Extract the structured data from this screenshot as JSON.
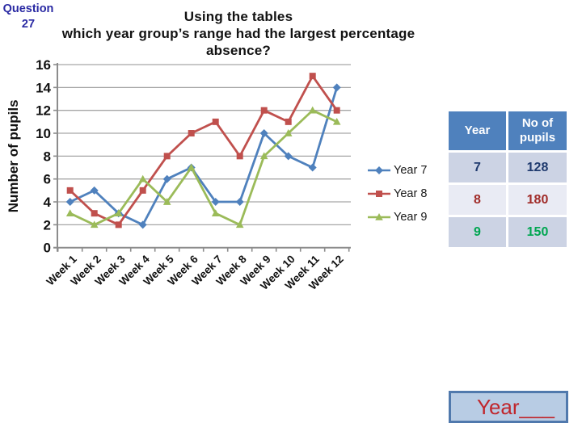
{
  "question": {
    "label": "Question",
    "number": "27"
  },
  "title": {
    "line1": "Using the tables",
    "line2": "which year group’s range had the largest percentage absence?"
  },
  "chart_data": {
    "type": "line",
    "categories": [
      "Week 1",
      "Week 2",
      "Week 3",
      "Week 4",
      "Week 5",
      "Week 6",
      "Week 7",
      "Week 8",
      "Week 9",
      "Week 10",
      "Week 11",
      "Week 12"
    ],
    "series": [
      {
        "name": "Year 7",
        "marker": "diamond",
        "color": "#4F81BD",
        "values": [
          4,
          5,
          3,
          2,
          6,
          7,
          4,
          4,
          10,
          8,
          7,
          14
        ]
      },
      {
        "name": "Year 8",
        "marker": "square",
        "color": "#C0504D",
        "values": [
          5,
          3,
          2,
          5,
          8,
          10,
          11,
          8,
          12,
          11,
          15,
          12
        ]
      },
      {
        "name": "Year 9",
        "marker": "triangle",
        "color": "#9BBB59",
        "values": [
          3,
          2,
          3,
          6,
          4,
          7,
          3,
          2,
          8,
          10,
          12,
          11
        ]
      }
    ],
    "ylabel": "Number of pupils",
    "xlabel": "",
    "ylim": [
      0,
      16
    ],
    "ytick_step": 2,
    "grid": true,
    "legend_position": "right"
  },
  "table": {
    "headers": {
      "year": "Year",
      "pupils": "No of pupils"
    },
    "rows": [
      {
        "year": "7",
        "pupils": "128",
        "color": "#1F3A6E"
      },
      {
        "year": "8",
        "pupils": "180",
        "color": "#A02B28"
      },
      {
        "year": "9",
        "pupils": "150",
        "color": "#00A651"
      }
    ]
  },
  "answer_box": {
    "text": "Year___"
  },
  "colors": {
    "question_text": "#2929A3",
    "table_header_bg": "#4F81BD",
    "table_row_odd": "#CCD3E4",
    "table_row_even": "#E9EBF4",
    "answer_fill": "#B8CCE4",
    "answer_border": "#5079AD",
    "answer_text": "#C0262C",
    "axis": "#8C8C8C",
    "grid": "#A6A6A6"
  }
}
